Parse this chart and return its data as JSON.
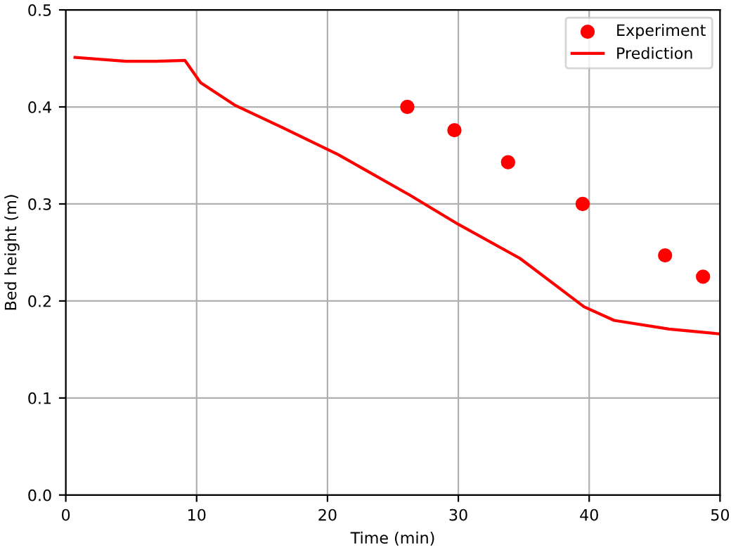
{
  "chart_data": {
    "type": "line",
    "xlabel": "Time (min)",
    "ylabel": "Bed height (m)",
    "xlim": [
      0,
      50
    ],
    "xticks": [
      0,
      10,
      20,
      30,
      40,
      50
    ],
    "ylim": [
      0,
      0.5
    ],
    "yticks": [
      {
        "value": 0,
        "label": "0.0"
      },
      0.1,
      0.2,
      0.3,
      0.4,
      0.5
    ],
    "grid": true,
    "legend": "top right",
    "series": [
      {
        "name": "Experiment",
        "type": "scatter",
        "marker": "circle",
        "color": "#ff0000",
        "x": [
          26.1,
          29.7,
          33.8,
          39.5,
          45.8,
          48.7
        ],
        "values": [
          0.4,
          0.376,
          0.343,
          0.3,
          0.247,
          0.225
        ]
      },
      {
        "name": "Prediction",
        "marker": "none",
        "line_style": "solid",
        "color": "#ff0000",
        "x": [
          0.7,
          4.6,
          6.9,
          9.1,
          10.3,
          12.9,
          16.5,
          20.8,
          26.3,
          30.0,
          34.7,
          39.6,
          41.9,
          46.1,
          50.0
        ],
        "values": [
          0.451,
          0.447,
          0.447,
          0.448,
          0.425,
          0.402,
          0.379,
          0.351,
          0.309,
          0.279,
          0.244,
          0.194,
          0.18,
          0.171,
          0.166
        ]
      }
    ]
  }
}
